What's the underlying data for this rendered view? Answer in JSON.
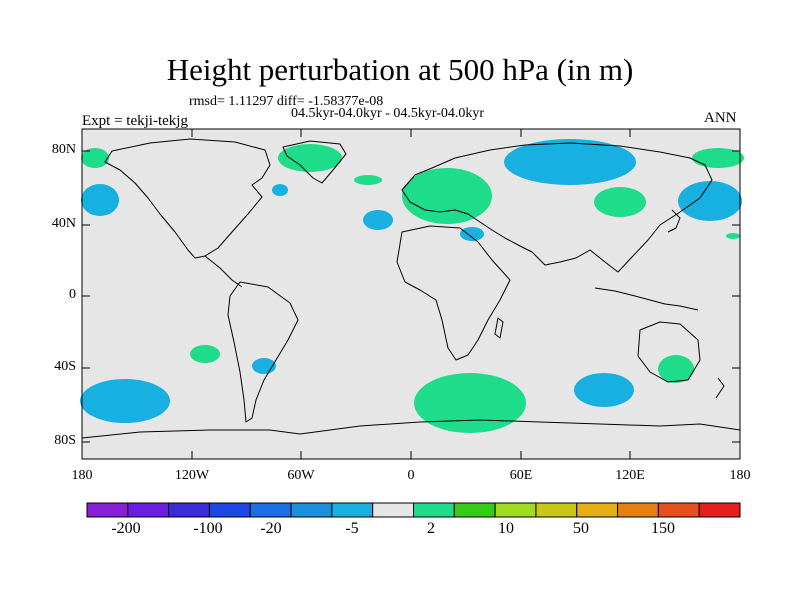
{
  "title": "Height perturbation at 500 hPa (in m)",
  "stats_line": "rmsd= 1.11297 diff= -1.58377e-08",
  "experiment_range": "04.5kyr-04.0kyr - 04.5kyr-04.0kyr",
  "experiment_label": "Expt = tekji-tekjg",
  "season": "ANN",
  "lat_labels": [
    "80N",
    "40N",
    "0",
    "40S",
    "80S"
  ],
  "lon_labels": [
    "180",
    "120W",
    "60W",
    "0",
    "60E",
    "120E",
    "180"
  ],
  "colorbar": {
    "colors": [
      "#8a1fd8",
      "#6a1fe0",
      "#3c2cd8",
      "#1e48e6",
      "#1e6ee6",
      "#1990d9",
      "#17b0e0",
      "#e6e6e6",
      "#1fdc8a",
      "#34cc14",
      "#a0dc1e",
      "#c8c814",
      "#e6ae12",
      "#e68012",
      "#e6501e",
      "#e61e1e"
    ],
    "labels": [
      "-200",
      "-100",
      "-20",
      "-5",
      "2",
      "10",
      "50",
      "150"
    ]
  },
  "colors": {
    "background": "#e6e6e6",
    "positive": "#1fdc8a",
    "negative": "#17b0e0"
  }
}
